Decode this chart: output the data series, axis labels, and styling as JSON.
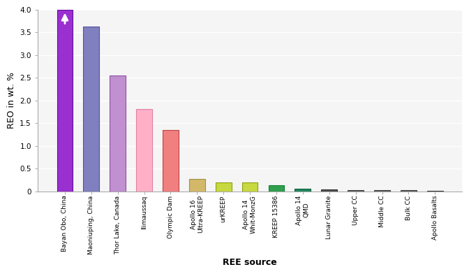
{
  "categories": [
    "Bayan Obo, China",
    "Maoniuping, China",
    "Thor Lake, Canada",
    "Ilimaussaq",
    "Olympic Dam",
    "Apollo 16\nUltra-KREEP",
    "urKREEP",
    "Apollo 14\nWhit-MonzG",
    "KREEP 15386",
    "Apollo 14\nQMD",
    "Lunar Granite",
    "Upper CC",
    "Middle CC",
    "Bulk CC",
    "Apollo Basalts"
  ],
  "values": [
    4.0,
    3.63,
    2.55,
    1.82,
    1.35,
    0.28,
    0.2,
    0.2,
    0.13,
    0.065,
    0.04,
    0.03,
    0.025,
    0.022,
    0.018
  ],
  "bar_colors": [
    "#9B30D0",
    "#8080C0",
    "#C090D0",
    "#FFB0C8",
    "#F08080",
    "#D4B86A",
    "#C8D840",
    "#C8D840",
    "#30A050",
    "#208860",
    "#505050",
    "#606060",
    "#606060",
    "#606060",
    "#505050"
  ],
  "edge_colors": [
    "#6010A0",
    "#5050A0",
    "#9050A0",
    "#E080A0",
    "#C04040",
    "#A09040",
    "#90A010",
    "#90A010",
    "#108030",
    "#106040",
    "#303030",
    "#404040",
    "#404040",
    "#404040",
    "#303030"
  ],
  "ylabel": "REO in wt. %",
  "xlabel": "REE source",
  "ylim": [
    0,
    4.0
  ],
  "yticks": [
    0,
    0.5,
    1.0,
    1.5,
    2.0,
    2.5,
    3.0,
    3.5,
    4.0
  ],
  "background_color": "#ffffff",
  "plot_bg_color": "#f5f5f5",
  "grid_color": "#ffffff",
  "title_fontsize": 9,
  "label_fontsize": 8,
  "tick_fontsize": 7.5
}
